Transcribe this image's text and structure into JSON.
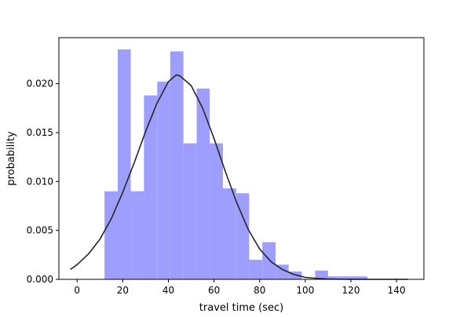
{
  "chart_data": {
    "type": "bar",
    "title": "",
    "xlabel": "travel time (sec)",
    "ylabel": "probability",
    "xlim": [
      -8,
      152
    ],
    "ylim": [
      0,
      0.0247
    ],
    "xticks": [
      0,
      20,
      40,
      60,
      80,
      100,
      120,
      140
    ],
    "xtick_labels": [
      "0",
      "20",
      "40",
      "60",
      "80",
      "100",
      "120",
      "140"
    ],
    "yticks": [
      0.0,
      0.005,
      0.01,
      0.015,
      0.02
    ],
    "ytick_labels": [
      "0.000",
      "0.005",
      "0.010",
      "0.015",
      "0.020"
    ],
    "grid": false,
    "histogram": {
      "color": "#9e9eff",
      "bins": [
        {
          "x0": 12.0,
          "x1": 17.8,
          "value": 0.009
        },
        {
          "x0": 17.8,
          "x1": 23.5,
          "value": 0.0235
        },
        {
          "x0": 23.5,
          "x1": 29.3,
          "value": 0.009
        },
        {
          "x0": 29.3,
          "x1": 35.1,
          "value": 0.0188
        },
        {
          "x0": 35.1,
          "x1": 40.8,
          "value": 0.0202
        },
        {
          "x0": 40.8,
          "x1": 46.6,
          "value": 0.0233
        },
        {
          "x0": 46.6,
          "x1": 52.4,
          "value": 0.0139
        },
        {
          "x0": 52.4,
          "x1": 58.1,
          "value": 0.0195
        },
        {
          "x0": 58.1,
          "x1": 63.9,
          "value": 0.0139
        },
        {
          "x0": 63.9,
          "x1": 69.7,
          "value": 0.0093
        },
        {
          "x0": 69.7,
          "x1": 75.4,
          "value": 0.0088
        },
        {
          "x0": 75.4,
          "x1": 81.2,
          "value": 0.002
        },
        {
          "x0": 81.2,
          "x1": 87.0,
          "value": 0.0038
        },
        {
          "x0": 87.0,
          "x1": 92.7,
          "value": 0.0015
        },
        {
          "x0": 92.7,
          "x1": 98.5,
          "value": 0.0008
        },
        {
          "x0": 98.5,
          "x1": 104.3,
          "value": 0.0
        },
        {
          "x0": 104.3,
          "x1": 110.0,
          "value": 0.0009
        },
        {
          "x0": 110.0,
          "x1": 115.8,
          "value": 0.0003
        },
        {
          "x0": 115.8,
          "x1": 121.6,
          "value": 0.0003
        },
        {
          "x0": 121.6,
          "x1": 127.3,
          "value": 0.0003
        }
      ]
    },
    "curve": {
      "type": "line",
      "color": "#262626",
      "x": [
        -3,
        0,
        5,
        10,
        15,
        20,
        25,
        30,
        35,
        40,
        43.5,
        45,
        50,
        55,
        60,
        65,
        70,
        75,
        80,
        85,
        90,
        95,
        100,
        105,
        110,
        115,
        120,
        125,
        130,
        135,
        140,
        145
      ],
      "y": [
        0.001,
        0.0015,
        0.0026,
        0.0041,
        0.0062,
        0.0089,
        0.0119,
        0.0151,
        0.018,
        0.0202,
        0.0209,
        0.0208,
        0.0198,
        0.0175,
        0.0144,
        0.011,
        0.0078,
        0.0051,
        0.0031,
        0.0018,
        0.001,
        0.0005,
        0.0002,
        0.0001,
        4e-05,
        1e-05,
        0.0,
        0.0,
        0.0,
        0.0,
        0.0,
        0.0
      ]
    }
  }
}
